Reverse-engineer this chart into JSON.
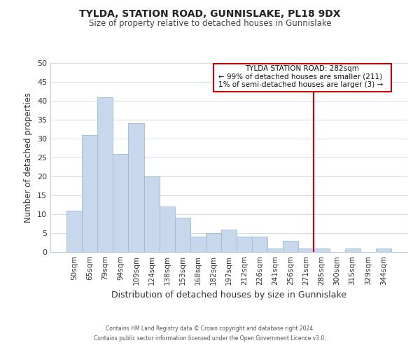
{
  "title": "TYLDA, STATION ROAD, GUNNISLAKE, PL18 9DX",
  "subtitle": "Size of property relative to detached houses in Gunnislake",
  "xlabel": "Distribution of detached houses by size in Gunnislake",
  "ylabel": "Number of detached properties",
  "bar_labels": [
    "50sqm",
    "65sqm",
    "79sqm",
    "94sqm",
    "109sqm",
    "124sqm",
    "138sqm",
    "153sqm",
    "168sqm",
    "182sqm",
    "197sqm",
    "212sqm",
    "226sqm",
    "241sqm",
    "256sqm",
    "271sqm",
    "285sqm",
    "300sqm",
    "315sqm",
    "329sqm",
    "344sqm"
  ],
  "bar_values": [
    11,
    31,
    41,
    26,
    34,
    20,
    12,
    9,
    4,
    5,
    6,
    4,
    4,
    1,
    3,
    1,
    1,
    0,
    1,
    0,
    1
  ],
  "bar_color": "#c8d8ec",
  "bar_edge_color": "#a0b8d0",
  "ylim": [
    0,
    50
  ],
  "yticks": [
    0,
    5,
    10,
    15,
    20,
    25,
    30,
    35,
    40,
    45,
    50
  ],
  "vline_x": 15.5,
  "vline_color": "#cc0000",
  "annotation_title": "TYLDA STATION ROAD: 282sqm",
  "annotation_line1": "← 99% of detached houses are smaller (211)",
  "annotation_line2": "1% of semi-detached houses are larger (3) →",
  "annotation_box_color": "#ffffff",
  "annotation_box_edge": "#cc0000",
  "footer1": "Contains HM Land Registry data © Crown copyright and database right 2024.",
  "footer2": "Contains public sector information licensed under the Open Government Licence v3.0.",
  "bg_color": "#ffffff",
  "grid_color": "#d0dce8"
}
